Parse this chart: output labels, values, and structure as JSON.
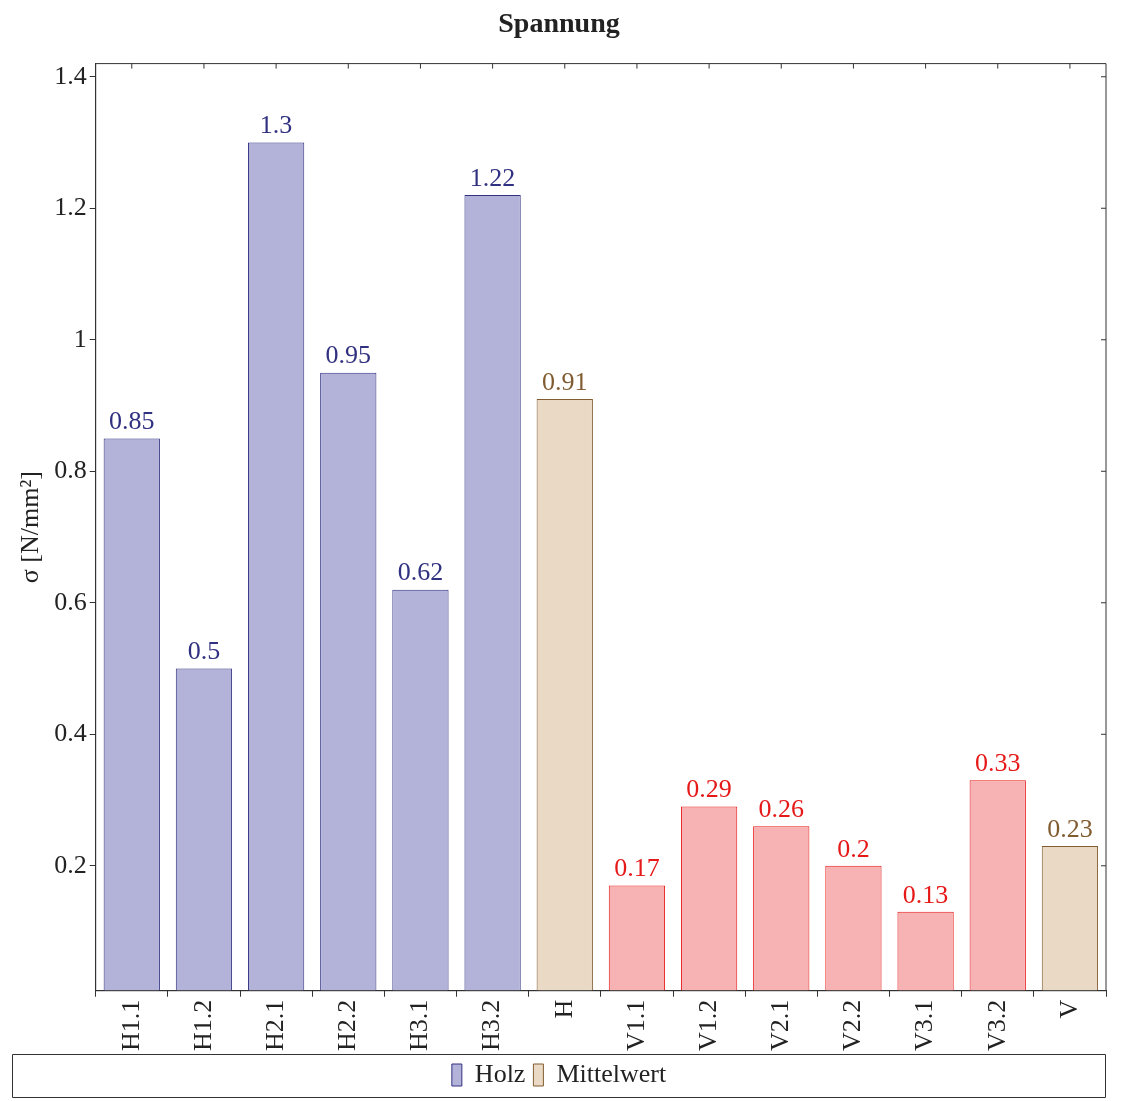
{
  "chart_data": {
    "type": "bar",
    "title": "Spannung",
    "ylabel": "σ [N/mm²]",
    "categories": [
      "H1.1",
      "H1.2",
      "H2.1",
      "H2.2",
      "H3.1",
      "H3.2",
      "H",
      "V1.1",
      "V1.2",
      "V2.1",
      "V2.2",
      "V3.1",
      "V3.2",
      "V"
    ],
    "series": [
      {
        "name": "Holz",
        "color": "#b3b3d9",
        "values": [
          0.85,
          0.5,
          1.3,
          0.95,
          0.62,
          1.22,
          null,
          null,
          null,
          null,
          null,
          null,
          null,
          null
        ]
      },
      {
        "color": "#f7b3b3",
        "values": [
          null,
          null,
          null,
          null,
          null,
          null,
          null,
          0.17,
          0.29,
          0.26,
          0.2,
          0.13,
          0.33,
          null
        ]
      },
      {
        "name": "Mittelwert",
        "color": "#ead9c5",
        "values": [
          null,
          null,
          null,
          null,
          null,
          null,
          0.91,
          null,
          null,
          null,
          null,
          null,
          null,
          0.23
        ]
      }
    ],
    "ylim": [
      0.01,
      1.42
    ],
    "yticks": [
      0.2,
      0.4,
      0.6,
      0.8,
      1,
      1.2,
      1.4
    ],
    "grid": false,
    "legend": "bottom",
    "data_labels": true
  }
}
